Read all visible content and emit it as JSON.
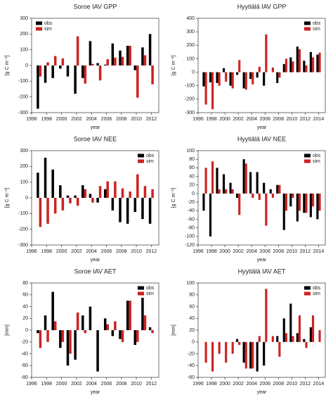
{
  "chart_data": [
    {
      "type": "bar",
      "title": "Soroe IAV GPP",
      "xlabel": "year",
      "ylabel": "[g C m⁻²]",
      "x": [
        1997,
        1998,
        1999,
        2000,
        2001,
        2002,
        2003,
        2004,
        2005,
        2006,
        2007,
        2008,
        2009,
        2010,
        2011,
        2012
      ],
      "series": [
        {
          "name": "obs",
          "color": "#000000",
          "values": [
            -275,
            -110,
            -80,
            -20,
            -70,
            -180,
            -80,
            155,
            15,
            5,
            140,
            95,
            125,
            -30,
            115,
            200
          ]
        },
        {
          "name": "sim",
          "color": "#cc2222",
          "values": [
            -70,
            20,
            60,
            45,
            0,
            185,
            -115,
            10,
            -95,
            40,
            50,
            55,
            125,
            -205,
            65,
            -120
          ]
        }
      ],
      "xlim": [
        1996,
        2013
      ],
      "xticks": [
        1996,
        1998,
        2000,
        2002,
        2004,
        2006,
        2008,
        2010,
        2012
      ],
      "ylim": [
        -300,
        300
      ],
      "yticks": [
        -300,
        -200,
        -100,
        0,
        100,
        200,
        300
      ],
      "legend": "upper left"
    },
    {
      "type": "bar",
      "title": "Hyytiälä IAV GPP",
      "xlabel": "year",
      "ylabel": "[g C m⁻²]",
      "x": [
        1997,
        1998,
        1999,
        2000,
        2001,
        2002,
        2003,
        2004,
        2005,
        2006,
        2007,
        2008,
        2009,
        2010,
        2011,
        2012,
        2013,
        2014
      ],
      "series": [
        {
          "name": "obs",
          "color": "#000000",
          "values": [
            -105,
            -75,
            -80,
            30,
            -100,
            -20,
            -120,
            -50,
            -40,
            -100,
            0,
            -80,
            60,
            110,
            190,
            85,
            150,
            130
          ]
        },
        {
          "name": "sim",
          "color": "#cc2222",
          "values": [
            -240,
            -275,
            -100,
            -70,
            -120,
            90,
            -130,
            -90,
            40,
            280,
            35,
            -40,
            100,
            80,
            170,
            50,
            110,
            145
          ]
        }
      ],
      "xlim": [
        1996,
        2015
      ],
      "xticks": [
        1996,
        1998,
        2000,
        2002,
        2004,
        2006,
        2008,
        2010,
        2012,
        2014
      ],
      "ylim": [
        -300,
        400
      ],
      "yticks": [
        -300,
        -200,
        -100,
        0,
        100,
        200,
        300,
        400
      ],
      "legend": "upper right"
    },
    {
      "type": "bar",
      "title": "Soroe IAV NEE",
      "xlabel": "year",
      "ylabel": "[g C m⁻²]",
      "x": [
        1997,
        1998,
        1999,
        2000,
        2001,
        2002,
        2003,
        2004,
        2005,
        2006,
        2007,
        2008,
        2009,
        2010,
        2011,
        2012
      ],
      "series": [
        {
          "name": "obs",
          "color": "#000000",
          "values": [
            160,
            255,
            180,
            80,
            15,
            15,
            80,
            25,
            -30,
            55,
            -80,
            -155,
            -165,
            -90,
            -135,
            -165
          ]
        },
        {
          "name": "sim",
          "color": "#cc2222",
          "values": [
            -185,
            -165,
            -100,
            -80,
            -35,
            -50,
            55,
            -30,
            75,
            105,
            105,
            60,
            40,
            150,
            75,
            55
          ]
        }
      ],
      "xlim": [
        1996,
        2013
      ],
      "xticks": [
        1996,
        1998,
        2000,
        2002,
        2004,
        2006,
        2008,
        2010,
        2012
      ],
      "ylim": [
        -300,
        300
      ],
      "yticks": [
        -300,
        -200,
        -100,
        0,
        100,
        200,
        300
      ],
      "legend": "upper right"
    },
    {
      "type": "bar",
      "title": "Hyytiälä IAV NEE",
      "xlabel": "year",
      "ylabel": "[g C m⁻²]",
      "x": [
        1997,
        1998,
        1999,
        2000,
        2001,
        2002,
        2003,
        2004,
        2005,
        2006,
        2007,
        2008,
        2009,
        2010,
        2011,
        2012,
        2013,
        2014
      ],
      "series": [
        {
          "name": "obs",
          "color": "#000000",
          "values": [
            -40,
            -100,
            60,
            45,
            25,
            -10,
            80,
            50,
            50,
            25,
            10,
            20,
            -85,
            -30,
            -65,
            -45,
            -55,
            -60
          ]
        },
        {
          "name": "sim",
          "color": "#cc2222",
          "values": [
            60,
            75,
            10,
            10,
            10,
            -50,
            70,
            -10,
            -15,
            -75,
            -10,
            20,
            -40,
            -10,
            -40,
            -45,
            -30,
            -40
          ]
        }
      ],
      "xlim": [
        1996,
        2015
      ],
      "xticks": [
        1996,
        1998,
        2000,
        2002,
        2004,
        2006,
        2008,
        2010,
        2012,
        2014
      ],
      "ylim": [
        -120,
        100
      ],
      "yticks": [
        -120,
        -100,
        -80,
        -60,
        -40,
        -20,
        0,
        20,
        40,
        60,
        80,
        100
      ],
      "legend": "upper right"
    },
    {
      "type": "bar",
      "title": "Soroe IAV AET",
      "xlabel": "year",
      "ylabel": "[mm]",
      "x": [
        1997,
        1998,
        1999,
        2000,
        2001,
        2002,
        2003,
        2004,
        2005,
        2006,
        2007,
        2008,
        2009,
        2010,
        2011,
        2012
      ],
      "series": [
        {
          "name": "obs",
          "color": "#000000",
          "values": [
            -5,
            25,
            65,
            -30,
            -60,
            -50,
            25,
            40,
            -70,
            20,
            -10,
            -15,
            50,
            -25,
            55,
            5
          ]
        },
        {
          "name": "sim",
          "color": "#cc2222",
          "values": [
            -30,
            -20,
            15,
            -20,
            -40,
            30,
            -5,
            0,
            0,
            10,
            15,
            -20,
            50,
            -20,
            25,
            -5
          ]
        }
      ],
      "xlim": [
        1996,
        2013
      ],
      "xticks": [
        1996,
        1998,
        2000,
        2002,
        2004,
        2006,
        2008,
        2010,
        2012
      ],
      "ylim": [
        -80,
        80
      ],
      "yticks": [
        -80,
        -60,
        -40,
        -20,
        0,
        20,
        40,
        60,
        80
      ],
      "legend": "upper right"
    },
    {
      "type": "bar",
      "title": "Hyytiälä IAV AET",
      "xlabel": "year",
      "ylabel": "[mm]",
      "x": [
        1997,
        1998,
        1999,
        2000,
        2001,
        2002,
        2003,
        2004,
        2005,
        2006,
        2007,
        2008,
        2009,
        2010,
        2011,
        2012,
        2013,
        2014
      ],
      "series": [
        {
          "name": "obs",
          "color": "#000000",
          "values": [
            0,
            0,
            0,
            0,
            0,
            5,
            -35,
            -45,
            -50,
            -40,
            0,
            10,
            40,
            65,
            15,
            5,
            25,
            0
          ]
        },
        {
          "name": "sim",
          "color": "#cc2222",
          "values": [
            -35,
            -50,
            -20,
            -35,
            -20,
            -5,
            -45,
            -45,
            10,
            90,
            10,
            -25,
            15,
            10,
            45,
            -10,
            45,
            20
          ]
        }
      ],
      "xlim": [
        1996,
        2015
      ],
      "xticks": [
        1996,
        1998,
        2000,
        2002,
        2004,
        2006,
        2008,
        2010,
        2012,
        2014
      ],
      "ylim": [
        -60,
        100
      ],
      "yticks": [
        -60,
        -40,
        -20,
        0,
        20,
        40,
        60,
        80,
        100
      ],
      "legend": "upper right"
    }
  ]
}
